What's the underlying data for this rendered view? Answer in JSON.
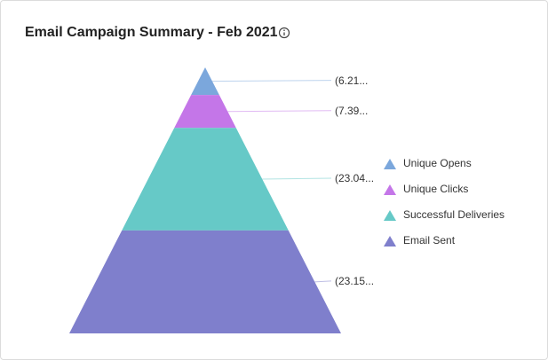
{
  "chart_data": {
    "type": "pyramid",
    "title": "Email Campaign Summary - Feb 2021",
    "categories": [
      "Unique Opens",
      "Unique Clicks",
      "Successful Deliveries",
      "Email Sent"
    ],
    "values": [
      6.21,
      7.39,
      23.04,
      23.15
    ],
    "value_labels": [
      "(6.21...",
      "(7.39...",
      "(23.04...",
      "(23.15..."
    ],
    "colors": [
      "#7ba7dc",
      "#c476e8",
      "#66c9c7",
      "#7f7fcc"
    ]
  }
}
